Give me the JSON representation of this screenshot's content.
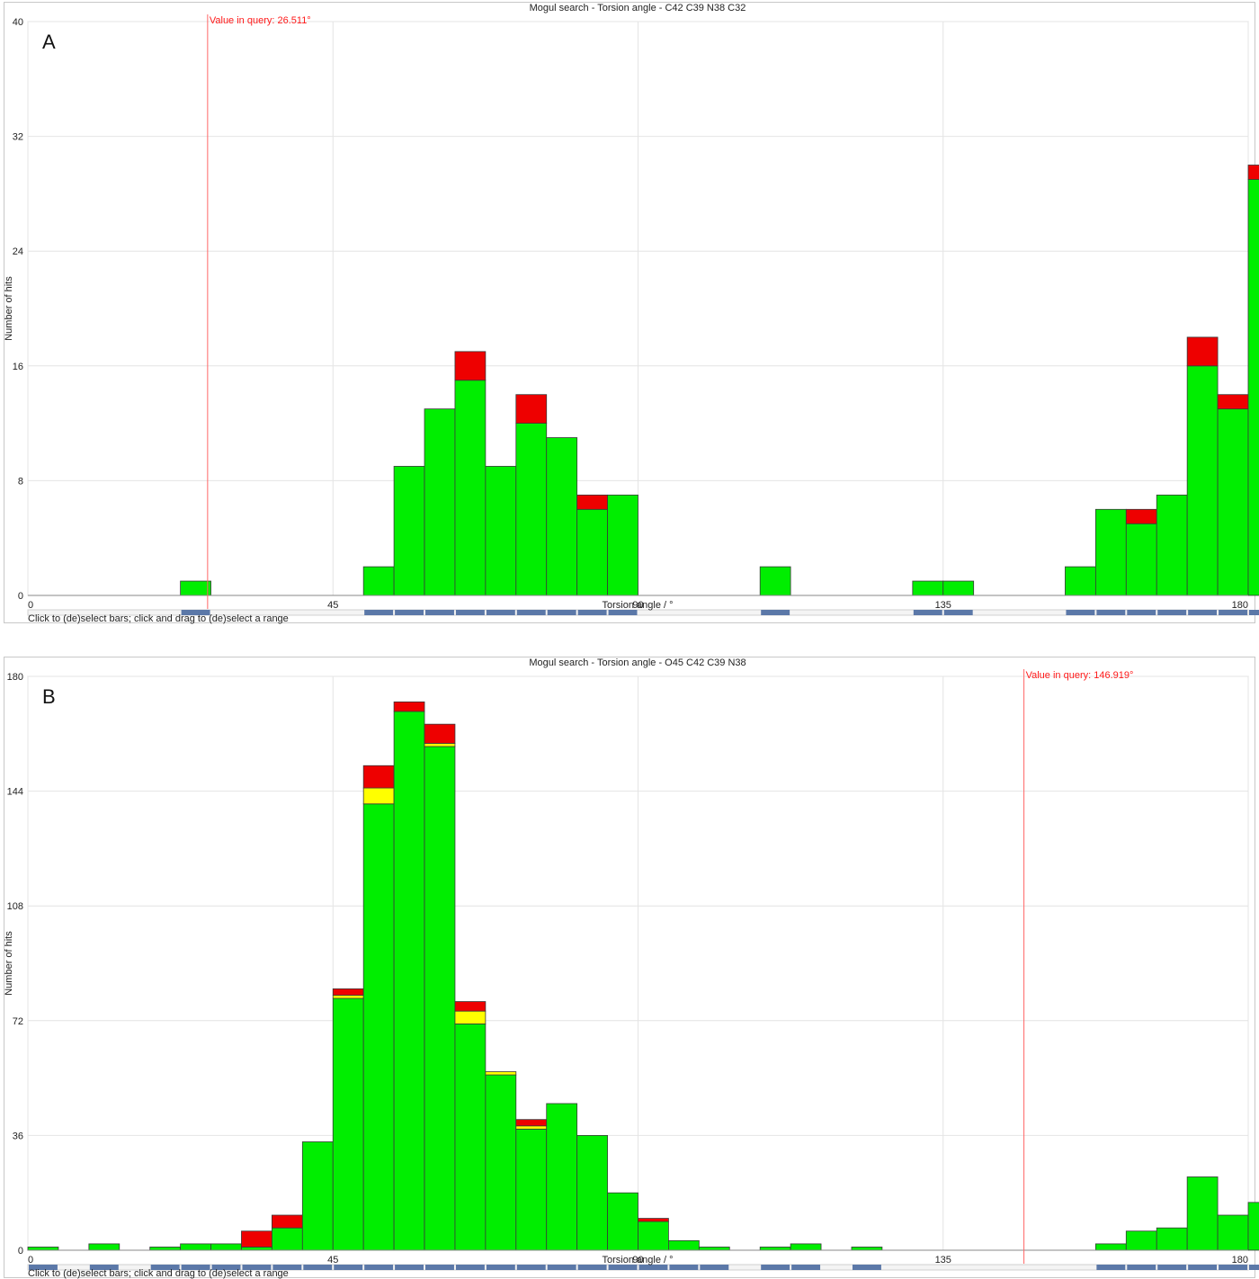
{
  "colors": {
    "green": "#00ee00",
    "red": "#ee0000",
    "yellow": "#ffff00",
    "query_line": "#ff6666",
    "selector": "#5b78a8"
  },
  "hint_text": "Click to (de)select bars; click and drag to (de)select a range",
  "chart_data": [
    {
      "type": "bar",
      "stacked": true,
      "panel_label": "A",
      "title": "Mogul search - Torsion angle - C42 C39 N38 C32",
      "xlabel": "Torsion angle / °",
      "ylabel": "Number of hits",
      "xlim": [
        0,
        180
      ],
      "ylim": [
        0,
        40
      ],
      "xticks": [
        "0",
        "45",
        "90",
        "135",
        "180"
      ],
      "yticks": [
        "0",
        "8",
        "16",
        "24",
        "32",
        "40"
      ],
      "bin_width": 4.5,
      "query_label": "Value in query: 26.511°",
      "query_value": 26.511,
      "series": [
        {
          "name": "green",
          "values": [
            0,
            0,
            0,
            0,
            0,
            1,
            0,
            0,
            0,
            0,
            0,
            2,
            9,
            13,
            15,
            9,
            12,
            11,
            6,
            7,
            0,
            0,
            0,
            0,
            2,
            0,
            0,
            0,
            0,
            1,
            1,
            0,
            0,
            0,
            2,
            6,
            5,
            7,
            16,
            13,
            29
          ]
        },
        {
          "name": "yellow",
          "values": [
            0,
            0,
            0,
            0,
            0,
            0,
            0,
            0,
            0,
            0,
            0,
            0,
            0,
            0,
            0,
            0,
            0,
            0,
            0,
            0,
            0,
            0,
            0,
            0,
            0,
            0,
            0,
            0,
            0,
            0,
            0,
            0,
            0,
            0,
            0,
            0,
            0,
            0,
            0,
            0,
            0
          ]
        },
        {
          "name": "red",
          "values": [
            0,
            0,
            0,
            0,
            0,
            0,
            0,
            0,
            0,
            0,
            0,
            0,
            0,
            0,
            2,
            0,
            2,
            0,
            1,
            0,
            0,
            0,
            0,
            0,
            0,
            0,
            0,
            0,
            0,
            0,
            0,
            0,
            0,
            0,
            0,
            0,
            1,
            0,
            2,
            1,
            1
          ]
        }
      ]
    },
    {
      "type": "bar",
      "stacked": true,
      "panel_label": "B",
      "title": "Mogul search - Torsion angle - O45 C42 C39 N38",
      "xlabel": "Torsion angle / °",
      "ylabel": "Number of hits",
      "xlim": [
        0,
        180
      ],
      "ylim": [
        0,
        180
      ],
      "xticks": [
        "0",
        "45",
        "90",
        "135",
        "180"
      ],
      "yticks": [
        "0",
        "36",
        "72",
        "108",
        "144",
        "180"
      ],
      "bin_width": 4.5,
      "query_label": "Value in query: 146.919°",
      "query_value": 146.919,
      "series": [
        {
          "name": "green",
          "values": [
            1,
            0,
            2,
            0,
            1,
            2,
            2,
            1,
            7,
            34,
            79,
            140,
            169,
            158,
            71,
            55,
            38,
            46,
            36,
            18,
            9,
            3,
            1,
            0,
            1,
            2,
            0,
            1,
            0,
            0,
            0,
            0,
            0,
            0,
            0,
            2,
            6,
            7,
            23,
            11,
            15
          ]
        },
        {
          "name": "yellow",
          "values": [
            0,
            0,
            0,
            0,
            0,
            0,
            0,
            0,
            0,
            0,
            1,
            5,
            0,
            1,
            4,
            1,
            1,
            0,
            0,
            0,
            0,
            0,
            0,
            0,
            0,
            0,
            0,
            0,
            0,
            0,
            0,
            0,
            0,
            0,
            0,
            0,
            0,
            0,
            0,
            0,
            0
          ]
        },
        {
          "name": "red",
          "values": [
            0,
            0,
            0,
            0,
            0,
            0,
            0,
            5,
            4,
            0,
            2,
            7,
            3,
            6,
            3,
            0,
            2,
            0,
            0,
            0,
            1,
            0,
            0,
            0,
            0,
            0,
            0,
            0,
            0,
            0,
            0,
            0,
            0,
            0,
            0,
            0,
            0,
            0,
            0,
            0,
            0
          ]
        }
      ]
    }
  ]
}
